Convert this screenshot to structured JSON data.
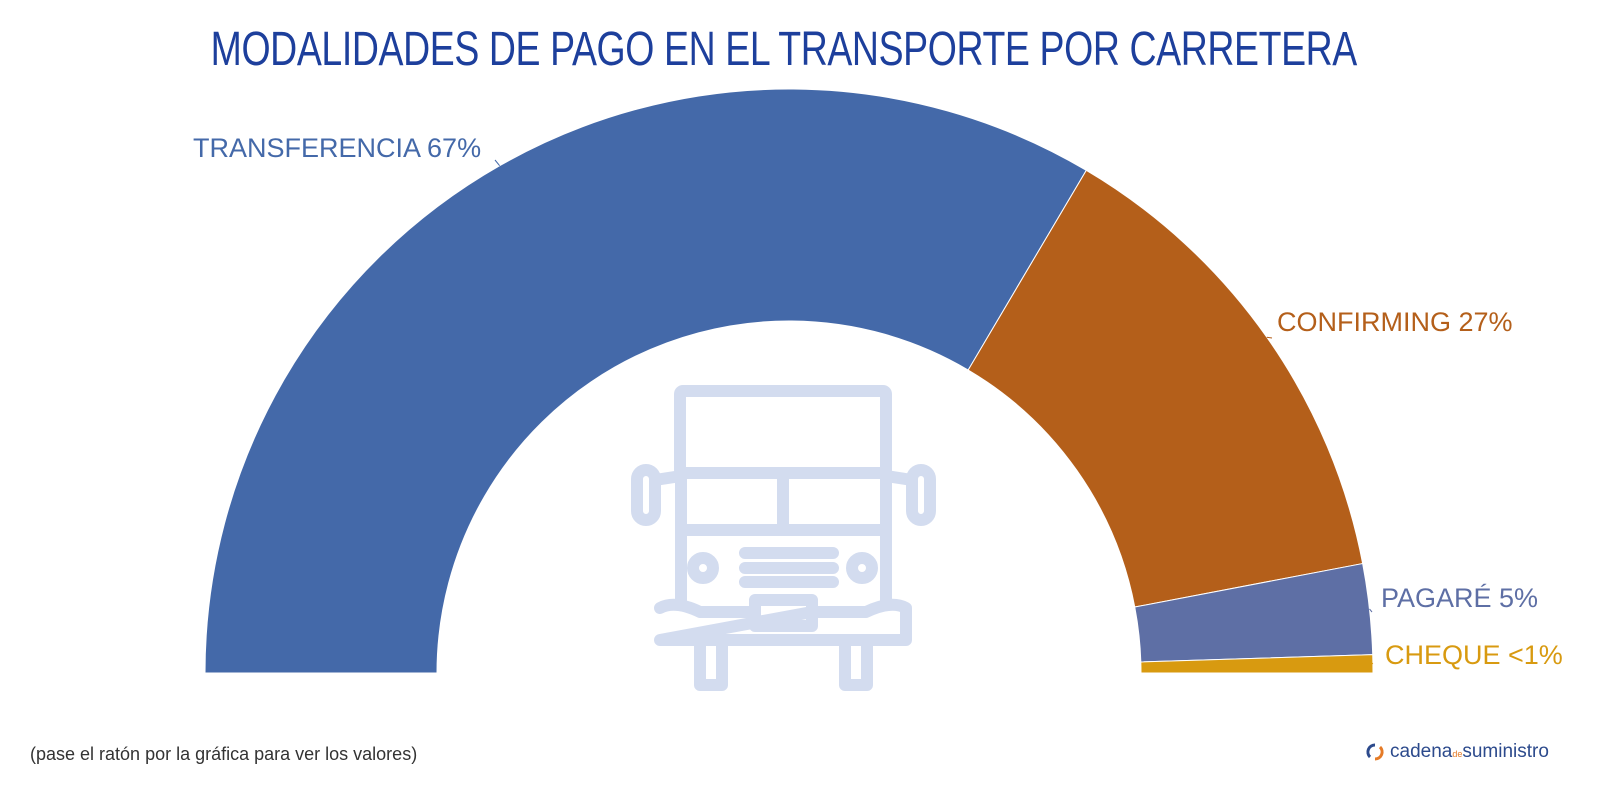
{
  "chart_data": {
    "type": "pie",
    "variant": "half-donut",
    "title": "MODALIDADES DE PAGO EN EL TRANSPORTE POR CARRETERA",
    "slices": [
      {
        "name": "TRANSFERENCIA",
        "value": 67,
        "label": "TRANSFERENCIA 67%",
        "color": "#4469a9"
      },
      {
        "name": "CONFIRMING",
        "value": 27,
        "label": "CONFIRMING 27%",
        "color": "#b45f1a"
      },
      {
        "name": "PAGARÉ",
        "value": 5,
        "label": "PAGARÉ 5%",
        "color": "#5e6fa5"
      },
      {
        "name": "CHEQUE",
        "value": 1,
        "label": "CHEQUE <1%",
        "color": "#d89a10"
      }
    ],
    "legend": "none"
  },
  "center_icon": "truck-icon",
  "footer": {
    "note": "(pase el ratón por la gráfica para ver los valores)",
    "logo_main": "cadena",
    "logo_de": "de",
    "logo_end": "suministro"
  }
}
